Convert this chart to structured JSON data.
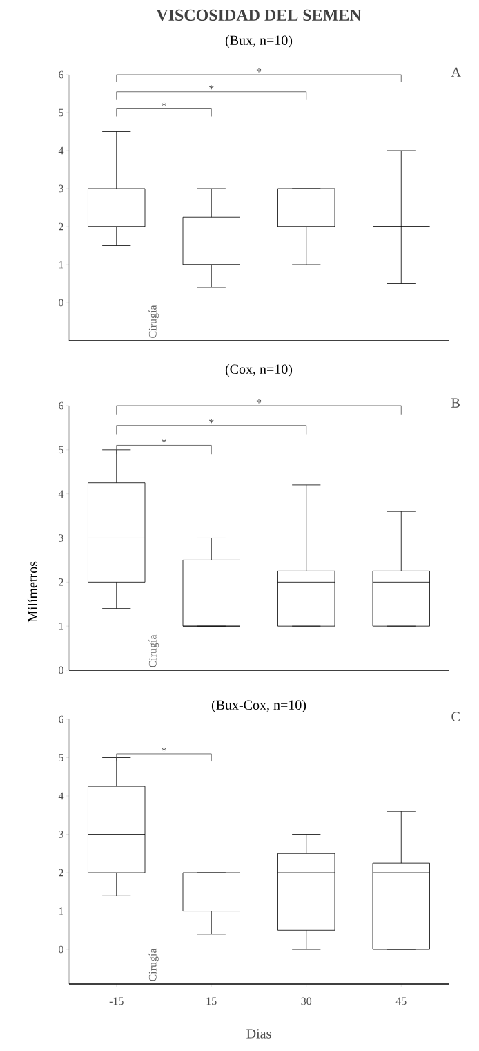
{
  "chart_data": [
    {
      "type": "box",
      "title": "VISCOSIDAD DEL SEMEN",
      "subtitle": "(Bux, n=10)",
      "categories": [
        "-15",
        "15",
        "30",
        "45"
      ],
      "boxes": [
        {
          "low": 1.5,
          "q1": 2,
          "median": 2,
          "q3": 3,
          "high": 4.5
        },
        {
          "low": 0.4,
          "q1": 1,
          "median": 1,
          "q3": 2.25,
          "high": 3
        },
        {
          "low": 1,
          "q1": 2,
          "median": 2,
          "q3": 3,
          "high": 3
        },
        {
          "low": 0.5,
          "q1": 2,
          "median": 2,
          "q3": 2,
          "high": 4
        }
      ],
      "ylim": [
        -1,
        6
      ],
      "yticks": [
        0,
        1,
        2,
        3,
        4,
        5,
        6
      ],
      "tick_labels": "y",
      "annotations": [
        "A",
        "Cirugía",
        "*",
        "*",
        "*"
      ]
    },
    {
      "type": "box",
      "subtitle": "(Cox, n=10)",
      "ylabel": "Milímetros",
      "categories": [
        "-15",
        "15",
        "30",
        "45"
      ],
      "boxes": [
        {
          "low": 1.4,
          "q1": 2,
          "median": 3,
          "q3": 4.25,
          "high": 5
        },
        {
          "low": 1,
          "q1": 1,
          "median": 1,
          "q3": 2.5,
          "high": 3
        },
        {
          "low": 1,
          "q1": 1,
          "median": 2,
          "q3": 2.25,
          "high": 4.2
        },
        {
          "low": 1,
          "q1": 1,
          "median": 2,
          "q3": 2.25,
          "high": 3.6
        }
      ],
      "ylim": [
        0,
        6
      ],
      "yticks": [
        0,
        1,
        2,
        3,
        4,
        5,
        6
      ],
      "tick_labels": "y",
      "annotations": [
        "B",
        "Cirugía",
        "*",
        "*",
        "*"
      ]
    },
    {
      "type": "box",
      "subtitle": "(Bux-Cox, n=10)",
      "xlabel": "Dias",
      "categories": [
        "-15",
        "15",
        "30",
        "45"
      ],
      "boxes": [
        {
          "low": 1.4,
          "q1": 2,
          "median": 3,
          "q3": 4.25,
          "high": 5
        },
        {
          "low": 0.4,
          "q1": 1,
          "median": 1,
          "q3": 2,
          "high": 2
        },
        {
          "low": 0,
          "q1": 0.5,
          "median": 2,
          "q3": 2.5,
          "high": 3
        },
        {
          "low": 0,
          "q1": 0,
          "median": 2,
          "q3": 2.25,
          "high": 3.6
        }
      ],
      "ylim": [
        -0.9,
        6
      ],
      "yticks": [
        0,
        1,
        2,
        3,
        4,
        5,
        6
      ],
      "annotations": [
        "C",
        "Cirugía",
        "*"
      ]
    }
  ]
}
